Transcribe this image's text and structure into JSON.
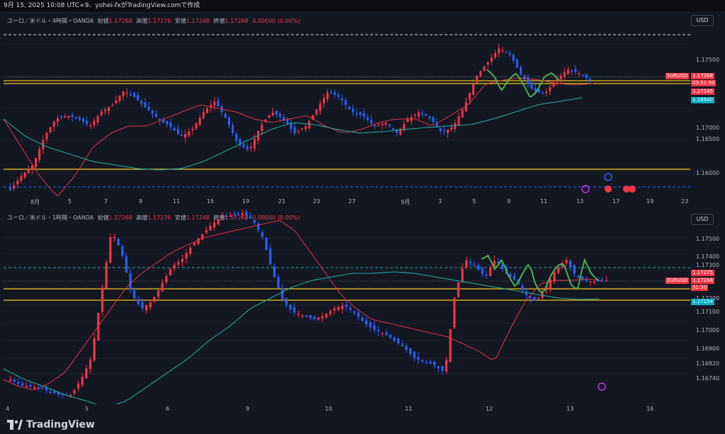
{
  "header": {
    "timestamp_line": "9月 15, 2025 10:08 UTC+9、yohei-fxがTradingView.comで作成"
  },
  "top_pane": {
    "symbol_line": "ユーロ／米ドル・4時間・OANDA",
    "ohlc": [
      {
        "label": "始値",
        "value": "1.17268"
      },
      {
        "label": "高値",
        "value": "1.17276"
      },
      {
        "label": "安値",
        "value": "1.17248"
      },
      {
        "label": "終値",
        "value": "1.17268"
      }
    ],
    "change": "0.00000 (0.00%)",
    "currency_button": "USD",
    "price_ticks": [
      "1.17500",
      "1.17000",
      "1.16500",
      "1.16000"
    ],
    "date_ticks": [
      "8月",
      "5",
      "7",
      "9",
      "11",
      "15",
      "19",
      "21",
      "23",
      "27",
      "9月",
      "3",
      "5",
      "9",
      "11",
      "13",
      "17",
      "19",
      "23"
    ],
    "tags": {
      "symbol": "EURUSD",
      "price": "1.17268",
      "countdown": "03:51:50",
      "level": "1.17145",
      "ma": "1.16940"
    }
  },
  "bottom_pane": {
    "symbol_line": "ユーロ／米ドル・1時間・OANDA",
    "ohlc": [
      {
        "label": "始値",
        "value": "1.17268"
      },
      {
        "label": "高値",
        "value": "1.17276"
      },
      {
        "label": "安値",
        "value": "1.17248"
      },
      {
        "label": "終値",
        "value": "1.17268"
      }
    ],
    "change": "0.00000 (0.00%)",
    "currency_button": "USD",
    "price_ticks": [
      "1.17500",
      "1.17400",
      "1.17300",
      "1.17200",
      "1.17100",
      "1.17000",
      "1.16900",
      "1.16820",
      "1.16740"
    ],
    "date_ticks": [
      "4",
      "5",
      "6",
      "9",
      "10",
      "11",
      "12",
      "13",
      "16"
    ],
    "tags": {
      "upper": "1.17275",
      "symbol": "EURUSD",
      "price": "1.17268",
      "countdown": "51:50",
      "level": "1.17154"
    }
  },
  "footer": {
    "brand": "TradingView"
  },
  "colors": {
    "up": "#f23645",
    "down": "#2962ff",
    "bg": "#131722",
    "yellow": "#f5c518",
    "teal": "#26a69a",
    "green": "#4caf50"
  }
}
